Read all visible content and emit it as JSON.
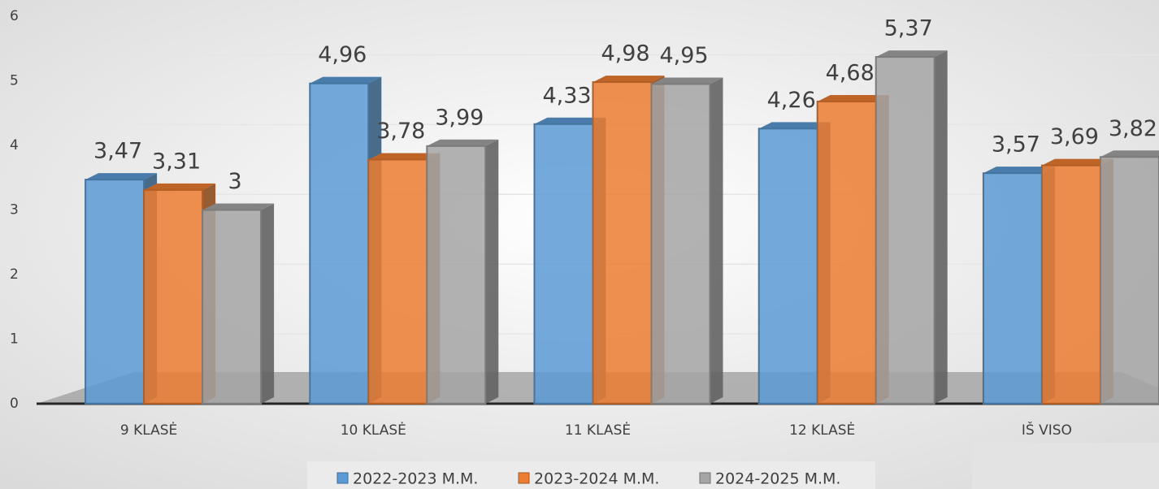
{
  "chart_data": {
    "type": "bar",
    "categories": [
      "9 KLASĖ",
      "10 KLASĖ",
      "11 KLASĖ",
      "12 KLASĖ",
      "IŠ VISO"
    ],
    "series": [
      {
        "name": "2022-2023 M.M.",
        "color": "#5b9bd5",
        "values": [
          3.47,
          4.96,
          4.33,
          4.26,
          3.57
        ],
        "value_labels": [
          "3,47",
          "4,96",
          "4,33",
          "4,26",
          "3,57"
        ]
      },
      {
        "name": "2023-2024 M.M.",
        "color": "#ed7d31",
        "values": [
          3.31,
          3.78,
          4.98,
          4.68,
          3.69
        ],
        "value_labels": [
          "3,31",
          "3,78",
          "4,98",
          "4,68",
          "3,69"
        ]
      },
      {
        "name": "2024-2025 M.M.",
        "color": "#a5a5a5",
        "values": [
          3,
          3.99,
          4.95,
          5.37,
          3.82
        ],
        "value_labels": [
          "3",
          "3,99",
          "4,95",
          "5,37",
          "3,82"
        ]
      }
    ],
    "ylim": [
      0,
      6
    ],
    "yticks": [
      0,
      1,
      2,
      3,
      4,
      5,
      6
    ],
    "grid": true,
    "legend": "bottom"
  }
}
